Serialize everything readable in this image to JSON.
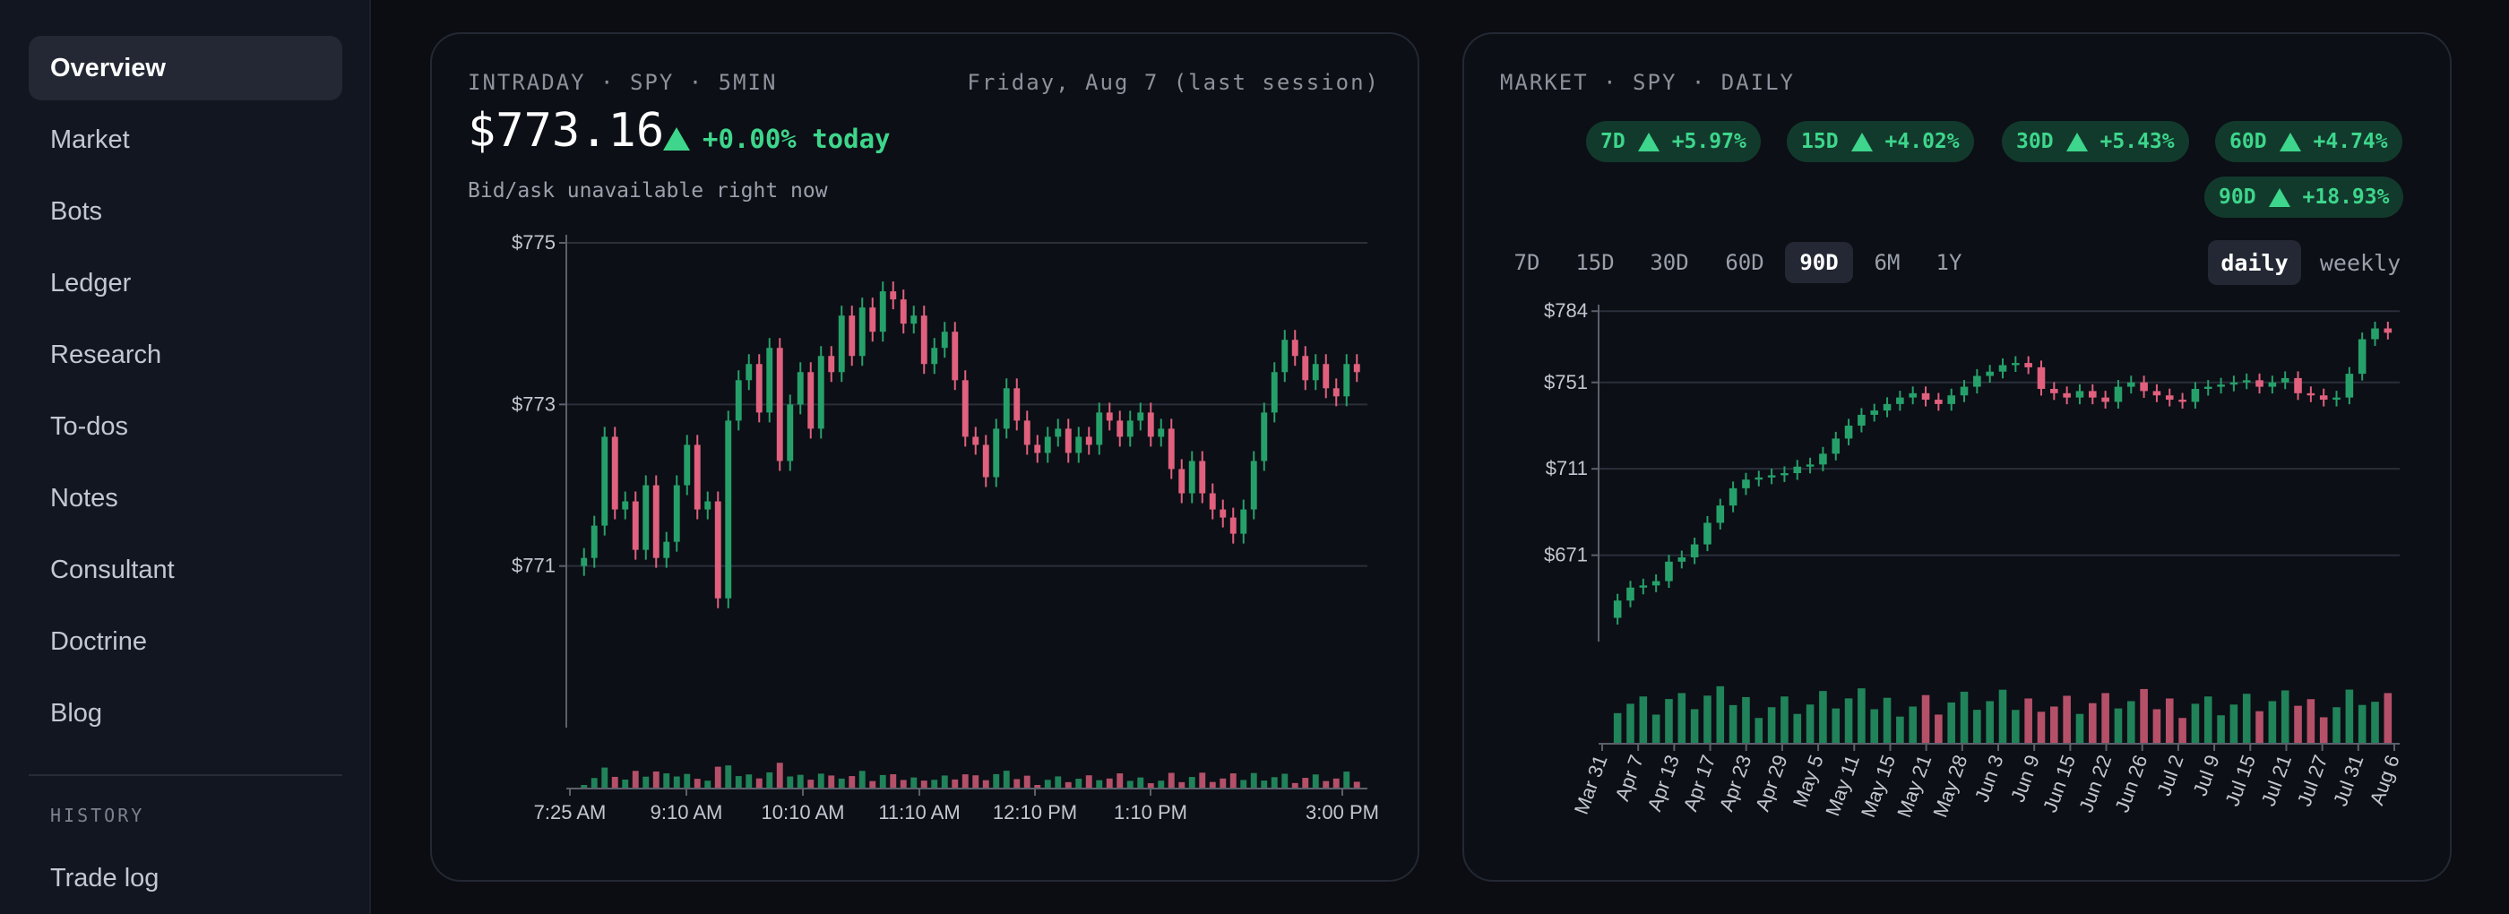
{
  "sidebar": {
    "items": [
      {
        "label": "Overview",
        "active": true
      },
      {
        "label": "Market"
      },
      {
        "label": "Bots"
      },
      {
        "label": "Ledger"
      },
      {
        "label": "Research"
      },
      {
        "label": "To-dos"
      },
      {
        "label": "Notes"
      },
      {
        "label": "Consultant"
      },
      {
        "label": "Doctrine"
      },
      {
        "label": "Blog"
      }
    ],
    "history_label": "HISTORY",
    "history_items": [
      {
        "label": "Trade log"
      }
    ]
  },
  "intraday": {
    "label": "INTRADAY · SPY · 5MIN",
    "date": "Friday, Aug 7 (last session)",
    "price": "$773.16",
    "change": "+0.00% today",
    "subtitle": "Bid/ask unavailable right now"
  },
  "market": {
    "label": "MARKET · SPY · DAILY",
    "pills": [
      {
        "period": "7D",
        "value": "+5.97%"
      },
      {
        "period": "15D",
        "value": "+4.02%"
      },
      {
        "period": "30D",
        "value": "+5.43%"
      },
      {
        "period": "60D",
        "value": "+4.74%"
      },
      {
        "period": "90D",
        "value": "+18.93%"
      }
    ],
    "ranges": [
      "7D",
      "15D",
      "30D",
      "60D",
      "90D",
      "6M",
      "1Y"
    ],
    "active_range": "90D",
    "toggles": [
      "daily",
      "weekly"
    ],
    "active_toggle": "daily"
  },
  "colors": {
    "up": "#26a06a",
    "down": "#e0607e",
    "accent": "#3dd68c"
  },
  "chart_data": [
    {
      "type": "candlestick",
      "title": "",
      "y_ticks": [
        775,
        773,
        771
      ],
      "y_tick_labels": [
        "$775",
        "$773",
        "$771"
      ],
      "ylim": [
        769.0,
        775.1
      ],
      "x_ticks": [
        "7:25 AM",
        "9:10 AM",
        "10:10 AM",
        "11:10 AM",
        "12:10 PM",
        "1:10 PM",
        "3:00 PM"
      ],
      "series": [
        {
          "name": "",
          "values": [
            771.1,
            771.5,
            772.6,
            771.7,
            771.8,
            771.2,
            772.0,
            771.1,
            771.3,
            772.0,
            772.5,
            771.7,
            771.8,
            770.6,
            772.8,
            773.3,
            773.5,
            772.9,
            773.7,
            772.3,
            773.0,
            773.4,
            772.7,
            773.6,
            773.4,
            774.1,
            773.6,
            774.2,
            773.9,
            774.4,
            774.3,
            774.0,
            774.1,
            773.5,
            773.7,
            773.9,
            773.3,
            772.6,
            772.5,
            772.1,
            772.7,
            773.2,
            772.8,
            772.5,
            772.4,
            772.6,
            772.7,
            772.4,
            772.6,
            772.5,
            772.9,
            772.8,
            772.6,
            772.8,
            772.9,
            772.6,
            772.7,
            772.2,
            771.9,
            772.3,
            771.9,
            771.7,
            771.6,
            771.4,
            771.7,
            772.3,
            772.9,
            773.4,
            773.8,
            773.6,
            773.3,
            773.5,
            773.2,
            773.1,
            773.5,
            773.4
          ]
        }
      ],
      "volume_note": "volume bars beneath price"
    },
    {
      "type": "candlestick",
      "title": "",
      "y_ticks": [
        784,
        751,
        711,
        671
      ],
      "y_tick_labels": [
        "$784",
        "$751",
        "$711",
        "$671"
      ],
      "ylim": [
        631,
        787
      ],
      "x_ticks": [
        "Mar 31",
        "Apr 7",
        "Apr 13",
        "Apr 17",
        "Apr 23",
        "Apr 29",
        "May 5",
        "May 11",
        "May 15",
        "May 21",
        "May 28",
        "Jun 3",
        "Jun 9",
        "Jun 15",
        "Jun 22",
        "Jun 26",
        "Jul 2",
        "Jul 9",
        "Jul 15",
        "Jul 21",
        "Jul 27",
        "Jul 31",
        "Aug 6"
      ],
      "series": [
        {
          "name": "SPY",
          "values": [
            650,
            656,
            657,
            659,
            668,
            670,
            676,
            686,
            694,
            702,
            706,
            707,
            708,
            709,
            712,
            713,
            718,
            725,
            731,
            736,
            738,
            741,
            744,
            746,
            743,
            741,
            745,
            749,
            754,
            756,
            759,
            760,
            758,
            748,
            746,
            744,
            747,
            744,
            742,
            749,
            751,
            747,
            745,
            743,
            742,
            748,
            749,
            750,
            751,
            752,
            749,
            751,
            753,
            746,
            745,
            743,
            744,
            755,
            771,
            776,
            774
          ]
        }
      ],
      "volume_note": "volume bars beneath price"
    }
  ]
}
